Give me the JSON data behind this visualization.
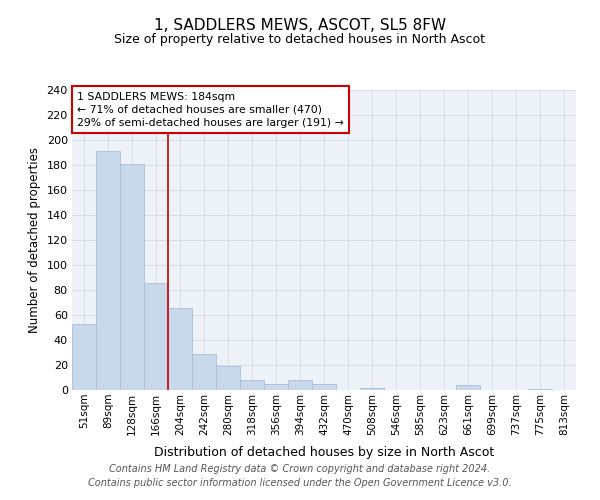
{
  "title": "1, SADDLERS MEWS, ASCOT, SL5 8FW",
  "subtitle": "Size of property relative to detached houses in North Ascot",
  "xlabel": "Distribution of detached houses by size in North Ascot",
  "ylabel": "Number of detached properties",
  "categories": [
    "51sqm",
    "89sqm",
    "128sqm",
    "166sqm",
    "204sqm",
    "242sqm",
    "280sqm",
    "318sqm",
    "356sqm",
    "394sqm",
    "432sqm",
    "470sqm",
    "508sqm",
    "546sqm",
    "585sqm",
    "623sqm",
    "661sqm",
    "699sqm",
    "737sqm",
    "775sqm",
    "813sqm"
  ],
  "values": [
    53,
    191,
    181,
    86,
    66,
    29,
    19,
    8,
    5,
    8,
    5,
    0,
    2,
    0,
    0,
    0,
    4,
    0,
    0,
    1,
    0
  ],
  "bar_color": "#c8d9eb",
  "bar_edge_color": "#a8bfd8",
  "vline_color": "#cc0000",
  "annotation_text": "1 SADDLERS MEWS: 184sqm\n← 71% of detached houses are smaller (470)\n29% of semi-detached houses are larger (191) →",
  "annotation_box_color": "#ffffff",
  "annotation_box_edge": "#cc0000",
  "grid_color": "#d5dde8",
  "background_color": "#edf2f8",
  "ylim": [
    0,
    240
  ],
  "yticks": [
    0,
    20,
    40,
    60,
    80,
    100,
    120,
    140,
    160,
    180,
    200,
    220,
    240
  ],
  "footer": "Contains HM Land Registry data © Crown copyright and database right 2024.\nContains public sector information licensed under the Open Government Licence v3.0."
}
